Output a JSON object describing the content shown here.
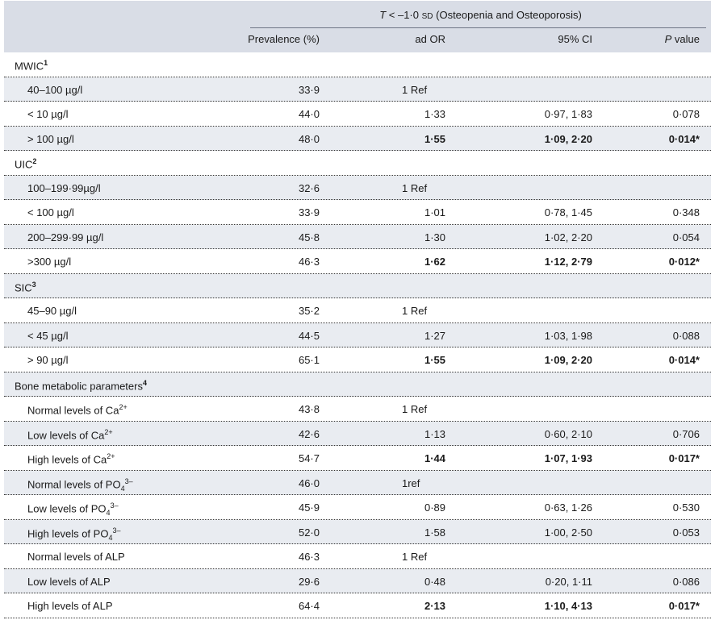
{
  "header": {
    "super_prefix": "T",
    "super_rest": " < –1·0 ",
    "super_sd": "SD",
    "super_suffix": " (Osteopenia and Osteoporosis)",
    "cols": [
      "Prevalence (%)",
      "ad OR",
      "95% CI",
      "value"
    ],
    "p_italic": "P"
  },
  "rows": [
    {
      "type": "group",
      "label": "MWIC",
      "sup": "1"
    },
    {
      "type": "item",
      "label": "40–100 µg/l",
      "prev": "33·9",
      "or": "1 Ref",
      "ref": true,
      "ci": "",
      "p": "",
      "bold": false
    },
    {
      "type": "item",
      "label": "< 10 µg/l",
      "prev": "44·0",
      "or": "1·33",
      "ci": "0·97, 1·83",
      "p": "0·078",
      "bold": false
    },
    {
      "type": "item",
      "label": "> 100 µg/l",
      "prev": "48·0",
      "or": "1·55",
      "ci": "1·09, 2·20",
      "p": "0·014*",
      "bold": true
    },
    {
      "type": "group",
      "label": "UIC",
      "sup": "2"
    },
    {
      "type": "item",
      "label": "100–199·99µg/l",
      "prev": "32·6",
      "or": "1 Ref",
      "ref": true,
      "ci": "",
      "p": "",
      "bold": false
    },
    {
      "type": "item",
      "label": "< 100 µg/l",
      "prev": "33·9",
      "or": "1·01",
      "ci": "0·78, 1·45",
      "p": "0·348",
      "bold": false
    },
    {
      "type": "item",
      "label": "200–299·99 µg/l",
      "prev": "45·8",
      "or": "1·30",
      "ci": "1·02, 2·20",
      "p": "0·054",
      "bold": false
    },
    {
      "type": "item",
      "label": ">300 µg/l",
      "prev": "46·3",
      "or": "1·62",
      "ci": "1·12, 2·79",
      "p": "0·012*",
      "bold": true
    },
    {
      "type": "group",
      "label": "SIC",
      "sup": "3"
    },
    {
      "type": "item",
      "label": "45–90 µg/l",
      "prev": "35·2",
      "or": "1 Ref",
      "ref": true,
      "ci": "",
      "p": "",
      "bold": false
    },
    {
      "type": "item",
      "label": "< 45 µg/l",
      "prev": "44·5",
      "or": "1·27",
      "ci": "1·03, 1·98",
      "p": "0·088",
      "bold": false
    },
    {
      "type": "item",
      "label": "> 90 µg/l",
      "prev": "65·1",
      "or": "1·55",
      "ci": "1·09, 2·20",
      "p": "0·014*",
      "bold": true
    },
    {
      "type": "group",
      "label": "Bone metabolic parameters",
      "sup": "4"
    },
    {
      "type": "item",
      "label": "Normal levels of Ca",
      "lsup": "2+",
      "prev": "43·8",
      "or": "1 Ref",
      "ref": true,
      "ci": "",
      "p": "",
      "bold": false
    },
    {
      "type": "item",
      "label": "Low levels of Ca",
      "lsup": "2+",
      "prev": "42·6",
      "or": "1·13",
      "ci": "0·60, 2·10",
      "p": "0·706",
      "bold": false
    },
    {
      "type": "item",
      "label": "High levels of Ca",
      "lsup": "2+",
      "prev": "54·7",
      "or": "1·44",
      "ci": "1·07, 1·93",
      "p": "0·017*",
      "bold": true
    },
    {
      "type": "item",
      "label": "Normal levels of PO",
      "lsub": "4",
      "lsup": "3–",
      "prev": "46·0",
      "or": "1ref",
      "ref": true,
      "ci": "",
      "p": "",
      "bold": false
    },
    {
      "type": "item",
      "label": "Low levels of PO",
      "lsub": "4",
      "lsup": "3–",
      "prev": "45·9",
      "or": "0·89",
      "ci": "0·63, 1·26",
      "p": "0·530",
      "bold": false
    },
    {
      "type": "item",
      "label": "High levels of PO",
      "lsub": "4",
      "lsup": "3–",
      "prev": "52·0",
      "or": "1·58",
      "ci": "1·00, 2·50",
      "p": "0·053",
      "bold": false
    },
    {
      "type": "item",
      "label": "Normal levels of ALP",
      "prev": "46·3",
      "or": "1 Ref",
      "ref": true,
      "ci": "",
      "p": "",
      "bold": false
    },
    {
      "type": "item",
      "label": "Low levels of ALP",
      "prev": "29·6",
      "or": "0·48",
      "ci": "0·20, 1·11",
      "p": "0·086",
      "bold": false
    },
    {
      "type": "item",
      "label": "High levels of ALP",
      "prev": "64·4",
      "or": "2·13",
      "ci": "1·10, 4·13",
      "p": "0·017*",
      "bold": true
    }
  ]
}
